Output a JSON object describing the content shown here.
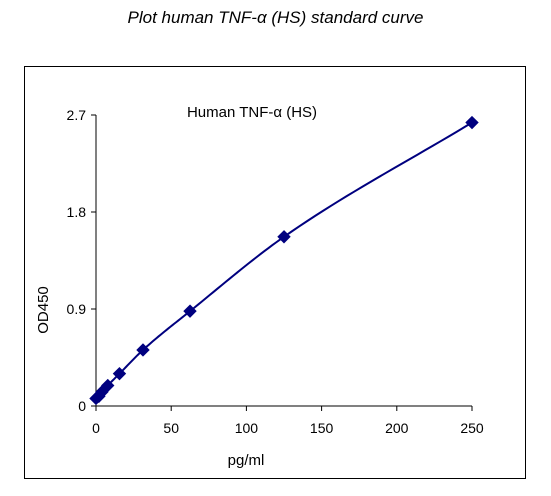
{
  "page_title": "Plot human TNF-α (HS) standard curve",
  "chart_data": {
    "type": "scatter",
    "title": "Human TNF-α (HS)",
    "xlabel": "pg/ml",
    "ylabel": "OD450",
    "xlim": [
      0,
      250
    ],
    "ylim": [
      0,
      2.7
    ],
    "xticks": [
      "0",
      "50",
      "100",
      "150",
      "200",
      "250"
    ],
    "yticks": [
      "0",
      "0.9",
      "1.8",
      "2.7"
    ],
    "grid": false,
    "legend": "none",
    "series": [
      {
        "x": [
          0,
          1.95,
          3.9,
          7.8,
          15.6,
          31.25,
          62.5,
          125,
          250
        ],
        "y": [
          0.07,
          0.09,
          0.13,
          0.19,
          0.3,
          0.52,
          0.88,
          1.57,
          2.63
        ],
        "marker": "diamond",
        "color": "#00007f",
        "trendline": true
      }
    ]
  }
}
